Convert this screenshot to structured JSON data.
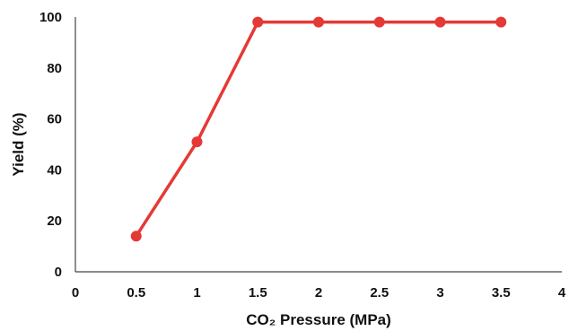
{
  "chart_data": {
    "type": "line",
    "xlabel": "CO₂ Pressure (MPa)",
    "ylabel": "Yield (%)",
    "xlim": [
      0,
      4
    ],
    "ylim": [
      0,
      100
    ],
    "x_ticks": [
      "0",
      "0.5",
      "1",
      "1.5",
      "2",
      "2.5",
      "3",
      "3.5",
      "4"
    ],
    "y_ticks": [
      "0",
      "20",
      "40",
      "60",
      "80",
      "100"
    ],
    "grid": false,
    "series": [
      {
        "x": [
          0.5,
          1,
          1.5,
          2,
          2.5,
          3,
          3.5
        ],
        "values": [
          14,
          51,
          98,
          98,
          98,
          98,
          98
        ],
        "color": "#e53935",
        "marker": "circle"
      }
    ]
  }
}
